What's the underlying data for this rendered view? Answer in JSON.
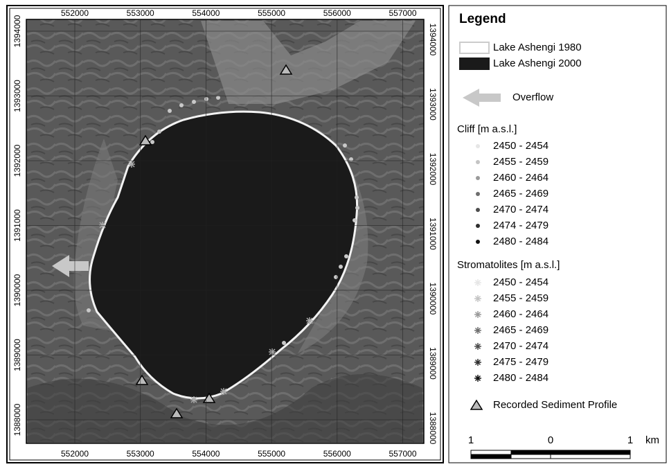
{
  "map": {
    "x_ticks": [
      552000,
      553000,
      554000,
      555000,
      556000,
      557000
    ],
    "y_ticks": [
      1394000,
      1393000,
      1392000,
      1391000,
      1390000,
      1389000,
      1388000
    ]
  },
  "legend": {
    "title": "Legend",
    "lake_1980": "Lake Ashengi 1980",
    "lake_2000": "Lake Ashengi 2000",
    "overflow": "Overflow",
    "cliff": {
      "title": "Cliff [m a.s.l.]",
      "classes": [
        "2450 - 2454",
        "2455 - 2459",
        "2460 - 2464",
        "2465 - 2469",
        "2470 - 2474",
        "2474 - 2479",
        "2480 - 2484"
      ]
    },
    "stromatolites": {
      "title": "Stromatolites  [m a.s.l.]",
      "classes": [
        "2450 - 2454",
        "2455 - 2459",
        "2460 - 2464",
        "2465 - 2469",
        "2470 - 2474",
        "2475 - 2479",
        "2480 - 2484"
      ]
    },
    "sediment_profile": "Recorded Sediment Profile",
    "scale": {
      "labels": [
        "1",
        "0",
        "1"
      ],
      "unit": "km"
    }
  }
}
